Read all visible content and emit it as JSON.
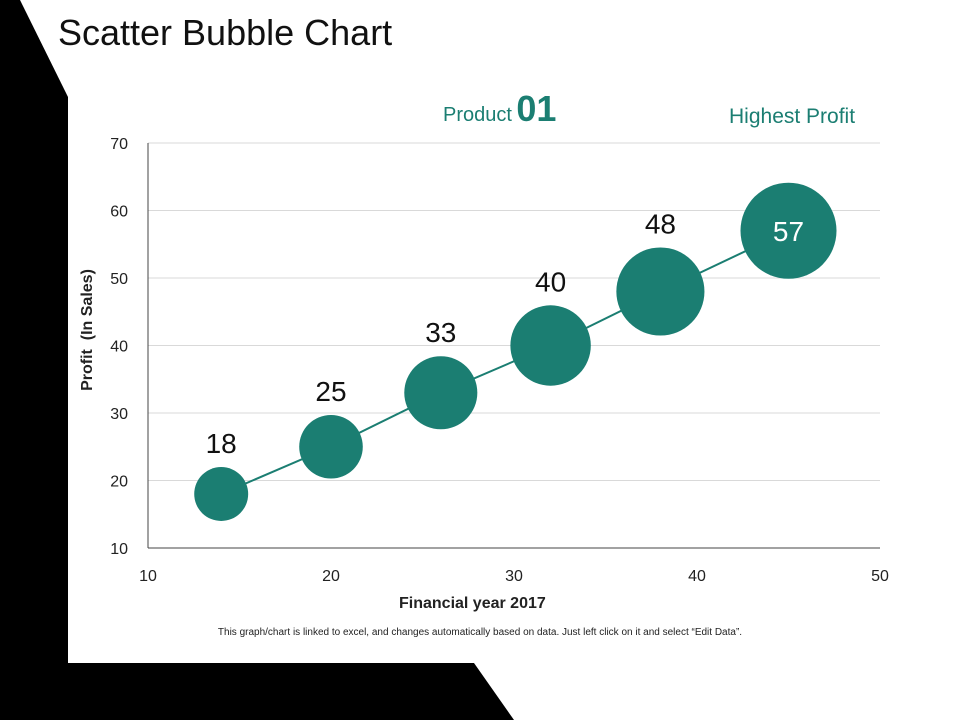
{
  "header": {
    "title": "Scatter Bubble Chart"
  },
  "annotations": {
    "product_word": "Product",
    "product_number": "01",
    "highest_profit": "Highest Profit"
  },
  "footnote": "This graph/chart is linked to excel,  and changes automatically based on data. Just left click on it and select “Edit Data”.",
  "colors": {
    "bubble": "#1b7e72",
    "line": "#1b7e72",
    "accent_dark": "#000000",
    "grid": "#d9d9d9"
  },
  "chart_data": {
    "type": "scatter",
    "title": "Scatter Bubble Chart",
    "xlabel": "Financial year  2017",
    "ylabel": "Profit  (In Sales)",
    "xlim": [
      10,
      50
    ],
    "ylim": [
      10,
      70
    ],
    "x_ticks": [
      "10",
      "20",
      "30",
      "40",
      "50"
    ],
    "y_ticks": [
      "10",
      "20",
      "30",
      "40",
      "50",
      "60",
      "70"
    ],
    "grid": true,
    "trendline": true,
    "points": [
      {
        "x": 14,
        "y": 18,
        "size": 18,
        "label": "18"
      },
      {
        "x": 20,
        "y": 25,
        "size": 25,
        "label": "25"
      },
      {
        "x": 26,
        "y": 33,
        "size": 33,
        "label": "33"
      },
      {
        "x": 32,
        "y": 40,
        "size": 40,
        "label": "40"
      },
      {
        "x": 38,
        "y": 48,
        "size": 48,
        "label": "48"
      },
      {
        "x": 45,
        "y": 57,
        "size": 57,
        "label": "57"
      }
    ]
  }
}
